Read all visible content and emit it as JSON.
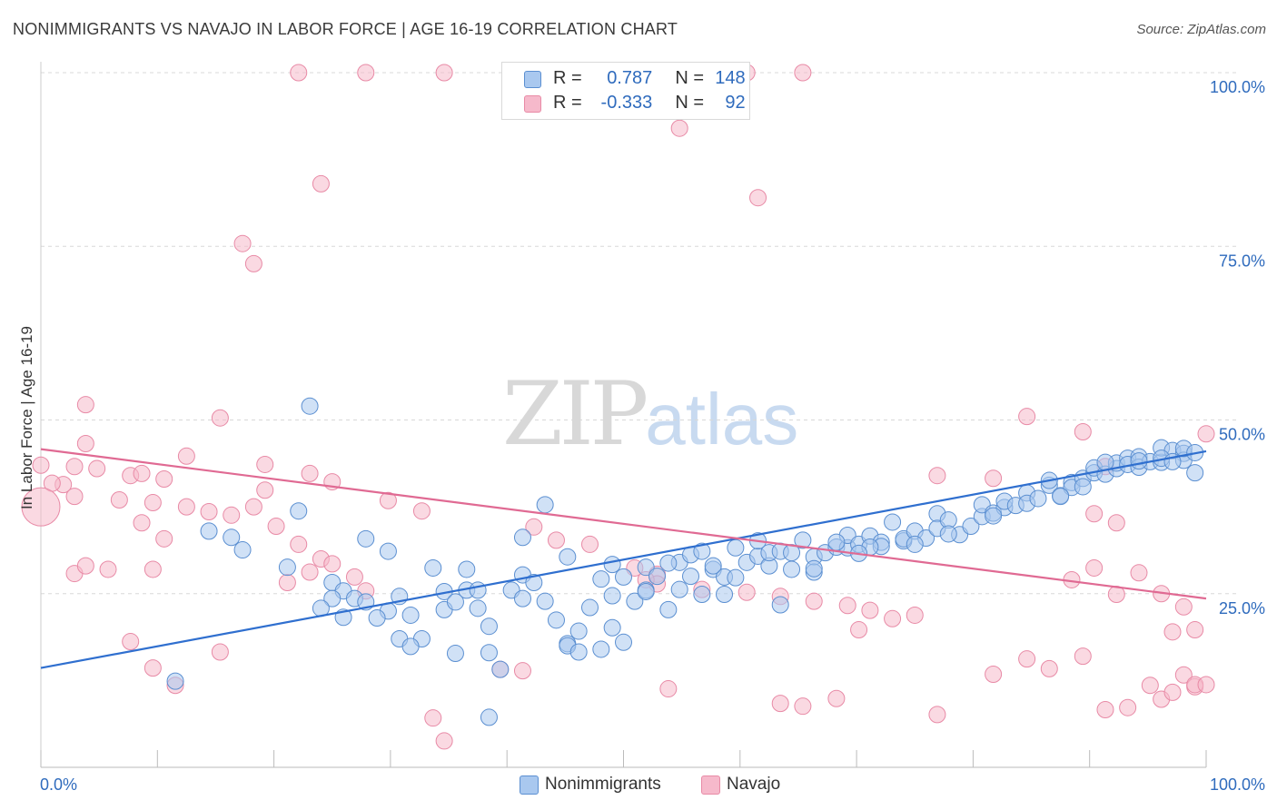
{
  "title": "NONIMMIGRANTS VS NAVAJO IN LABOR FORCE | AGE 16-19 CORRELATION CHART",
  "source": "Source: ZipAtlas.com",
  "watermark": {
    "zip": "ZIP",
    "atlas": "atlas"
  },
  "stats": {
    "row1": {
      "r_label": "R =",
      "r_value": "0.787",
      "n_label": "N =",
      "n_value": "148"
    },
    "row2": {
      "r_label": "R =",
      "r_value": "-0.333",
      "n_label": "N =",
      "n_value": "92"
    }
  },
  "legend": {
    "item1": "Nonimmigrants",
    "item2": "Navajo"
  },
  "colors": {
    "blue_fill": "#a9c8ef",
    "blue_stroke": "#5b8fd1",
    "blue_line": "#2f6fcf",
    "pink_fill": "#f6b9cb",
    "pink_stroke": "#e88aa6",
    "pink_line": "#e06a93",
    "axis_text": "#2f6bbd",
    "grid": "#d8d8d8"
  },
  "chart_data": {
    "type": "scatter",
    "title": "NONIMMIGRANTS VS NAVAJO IN LABOR FORCE | AGE 16-19 CORRELATION CHART",
    "xlabel": "",
    "ylabel": "In Labor Force | Age 16-19",
    "xlim": [
      0,
      100
    ],
    "ylim": [
      0,
      100
    ],
    "x_tick_labels": [
      "0.0%",
      "100.0%"
    ],
    "y_ticks": [
      25,
      50,
      75,
      100
    ],
    "y_tick_labels": [
      "25.0%",
      "50.0%",
      "75.0%",
      "100.0%"
    ],
    "grid": true,
    "legend_placement": "bottom-center",
    "series": [
      {
        "name": "Nonimmigrants",
        "r": 0.787,
        "n": 148,
        "trend": {
          "x": [
            0,
            100
          ],
          "y": [
            14.3,
            45.5
          ]
        },
        "points": [
          [
            24,
            52
          ],
          [
            23,
            36.9
          ],
          [
            18,
            31.3
          ],
          [
            22,
            28.8
          ],
          [
            26,
            26.6
          ],
          [
            27,
            25.4
          ],
          [
            28,
            24.3
          ],
          [
            26,
            24.3
          ],
          [
            25,
            22.9
          ],
          [
            27,
            21.6
          ],
          [
            29,
            32.9
          ],
          [
            31,
            31.1
          ],
          [
            29,
            23.8
          ],
          [
            31,
            22.5
          ],
          [
            32,
            18.5
          ],
          [
            34,
            18.5
          ],
          [
            33,
            21.9
          ],
          [
            36,
            22.7
          ],
          [
            37,
            16.4
          ],
          [
            36,
            25.3
          ],
          [
            37,
            23.8
          ],
          [
            38,
            28.5
          ],
          [
            38,
            25.5
          ],
          [
            39,
            22.9
          ],
          [
            40,
            20.3
          ],
          [
            41,
            14.1
          ],
          [
            42,
            25.5
          ],
          [
            43,
            27.7
          ],
          [
            43,
            24.3
          ],
          [
            44,
            26.6
          ],
          [
            45,
            23.9
          ],
          [
            46,
            21.2
          ],
          [
            47,
            17.8
          ],
          [
            48,
            19.6
          ],
          [
            49,
            23.0
          ],
          [
            50,
            27.1
          ],
          [
            51,
            29.2
          ],
          [
            51,
            24.7
          ],
          [
            52,
            27.4
          ],
          [
            53,
            23.9
          ],
          [
            54,
            28.8
          ],
          [
            54,
            25.5
          ],
          [
            55,
            27.5
          ],
          [
            56,
            22.7
          ],
          [
            57,
            29.5
          ],
          [
            58,
            27.5
          ],
          [
            58,
            30.6
          ],
          [
            59,
            31.1
          ],
          [
            60,
            28.5
          ],
          [
            61,
            27.4
          ],
          [
            62,
            31.6
          ],
          [
            63,
            29.5
          ],
          [
            64,
            30.4
          ],
          [
            65,
            29.0
          ],
          [
            65,
            30.9
          ],
          [
            66,
            31.1
          ],
          [
            67,
            30.9
          ],
          [
            67,
            28.5
          ],
          [
            68,
            32.7
          ],
          [
            69,
            30.3
          ],
          [
            70,
            30.9
          ],
          [
            71,
            31.7
          ],
          [
            72,
            31.6
          ],
          [
            72,
            33.4
          ],
          [
            73,
            32.1
          ],
          [
            74,
            33.3
          ],
          [
            75,
            32.4
          ],
          [
            75,
            31.8
          ],
          [
            76,
            35.3
          ],
          [
            77,
            32.6
          ],
          [
            77,
            32.9
          ],
          [
            78,
            34.0
          ],
          [
            79,
            33.0
          ],
          [
            80,
            36.5
          ],
          [
            80,
            34.4
          ],
          [
            81,
            35.6
          ],
          [
            82,
            33.5
          ],
          [
            83,
            34.7
          ],
          [
            84,
            36.1
          ],
          [
            84,
            37.8
          ],
          [
            85,
            36.6
          ],
          [
            86,
            37.4
          ],
          [
            86,
            38.3
          ],
          [
            87,
            37.7
          ],
          [
            88,
            39.5
          ],
          [
            88,
            38.0
          ],
          [
            89,
            38.7
          ],
          [
            90,
            40.6
          ],
          [
            90,
            41.3
          ],
          [
            91,
            39.1
          ],
          [
            92,
            41.0
          ],
          [
            92,
            40.3
          ],
          [
            93,
            41.6
          ],
          [
            94,
            42.4
          ],
          [
            94,
            43.1
          ],
          [
            95,
            42.2
          ],
          [
            96,
            43.0
          ],
          [
            96,
            43.8
          ],
          [
            97,
            44.5
          ],
          [
            97,
            43.6
          ],
          [
            98,
            44.7
          ],
          [
            98,
            43.2
          ],
          [
            99,
            44.0
          ],
          [
            100,
            43.9
          ],
          [
            100,
            46.0
          ],
          [
            101,
            45.6
          ],
          [
            102,
            45.2
          ],
          [
            102,
            44.2
          ],
          [
            102,
            45.9
          ],
          [
            103,
            45.3
          ],
          [
            103,
            42.4
          ],
          [
            60,
            29.0
          ],
          [
            69,
            28.1
          ],
          [
            61,
            24.9
          ],
          [
            78,
            32.1
          ],
          [
            74,
            31.7
          ],
          [
            56,
            29.4
          ],
          [
            64,
            32.6
          ],
          [
            52,
            18.0
          ],
          [
            47,
            30.3
          ],
          [
            45,
            37.8
          ],
          [
            43,
            33.1
          ],
          [
            39,
            25.5
          ],
          [
            35,
            28.7
          ],
          [
            32,
            24.6
          ],
          [
            30,
            21.5
          ],
          [
            33,
            17.4
          ],
          [
            40,
            16.5
          ],
          [
            47,
            17.5
          ],
          [
            48,
            16.6
          ],
          [
            50,
            17.0
          ],
          [
            51,
            20.1
          ],
          [
            54,
            25.3
          ],
          [
            57,
            25.6
          ],
          [
            59,
            24.9
          ],
          [
            62,
            27.3
          ],
          [
            66,
            23.4
          ],
          [
            69,
            28.6
          ],
          [
            71,
            32.4
          ],
          [
            73,
            30.8
          ],
          [
            81,
            33.6
          ],
          [
            85,
            36.2
          ],
          [
            91,
            39.0
          ],
          [
            93,
            40.4
          ],
          [
            95,
            43.9
          ],
          [
            98,
            44.1
          ],
          [
            100,
            44.5
          ],
          [
            101,
            44.0
          ],
          [
            40,
            7.2
          ],
          [
            12,
            12.4
          ],
          [
            17,
            33.1
          ],
          [
            15,
            34.0
          ]
        ]
      },
      {
        "name": "Navajo",
        "r": -0.333,
        "n": 92,
        "trend": {
          "x": [
            0,
            100
          ],
          "y": [
            45.8,
            24.3
          ]
        },
        "points": [
          [
            23,
            100
          ],
          [
            29,
            100
          ],
          [
            36,
            100
          ],
          [
            63,
            100
          ],
          [
            68,
            100
          ],
          [
            57,
            92
          ],
          [
            25,
            84
          ],
          [
            64,
            82
          ],
          [
            18,
            75.4
          ],
          [
            19,
            72.5
          ],
          [
            4,
            52.2
          ],
          [
            16,
            50.3
          ],
          [
            4,
            46.6
          ],
          [
            13,
            44.8
          ],
          [
            20,
            43.6
          ],
          [
            0,
            43.5
          ],
          [
            3,
            43.3
          ],
          [
            5,
            43.0
          ],
          [
            8,
            42.0
          ],
          [
            9,
            42.3
          ],
          [
            11,
            41.5
          ],
          [
            2,
            40.7
          ],
          [
            1,
            40.9
          ],
          [
            3,
            39.0
          ],
          [
            7,
            38.5
          ],
          [
            10,
            38.1
          ],
          [
            13,
            37.5
          ],
          [
            15,
            36.8
          ],
          [
            17,
            36.3
          ],
          [
            19,
            37.5
          ],
          [
            21,
            34.7
          ],
          [
            9,
            35.2
          ],
          [
            24,
            42.3
          ],
          [
            26,
            41.1
          ],
          [
            20,
            39.9
          ],
          [
            6,
            28.5
          ],
          [
            10,
            28.5
          ],
          [
            11,
            32.9
          ],
          [
            23,
            32.1
          ],
          [
            24,
            28.1
          ],
          [
            25,
            30.0
          ],
          [
            26,
            29.3
          ],
          [
            22,
            26.6
          ],
          [
            28,
            27.4
          ],
          [
            29,
            25.4
          ],
          [
            31,
            38.4
          ],
          [
            34,
            36.9
          ],
          [
            44,
            34.6
          ],
          [
            46,
            32.7
          ],
          [
            49,
            32.1
          ],
          [
            53,
            28.7
          ],
          [
            55,
            27.8
          ],
          [
            55,
            26.4
          ],
          [
            59,
            25.6
          ],
          [
            63,
            25.2
          ],
          [
            66,
            24.6
          ],
          [
            69,
            23.9
          ],
          [
            72,
            23.3
          ],
          [
            74,
            22.6
          ],
          [
            78,
            21.9
          ],
          [
            80,
            42.0
          ],
          [
            85,
            41.6
          ],
          [
            88,
            50.5
          ],
          [
            93,
            48.3
          ],
          [
            95,
            43.3
          ],
          [
            96,
            35.2
          ],
          [
            94,
            36.5
          ],
          [
            92,
            27.0
          ],
          [
            94,
            28.7
          ],
          [
            96,
            24.9
          ],
          [
            98,
            28.0
          ],
          [
            100,
            25.0
          ],
          [
            101,
            19.5
          ],
          [
            102,
            23.1
          ],
          [
            103,
            19.8
          ],
          [
            104,
            48.0
          ],
          [
            3,
            27.9
          ],
          [
            4,
            29.0
          ],
          [
            8,
            18.1
          ],
          [
            10,
            14.3
          ],
          [
            12,
            11.8
          ],
          [
            16,
            16.6
          ],
          [
            36,
            3.8
          ],
          [
            35,
            7.1
          ],
          [
            41,
            14.1
          ],
          [
            43,
            13.9
          ],
          [
            54,
            27.0
          ],
          [
            56,
            11.3
          ],
          [
            66,
            9.2
          ],
          [
            68,
            8.8
          ],
          [
            71,
            9.9
          ],
          [
            73,
            19.8
          ],
          [
            76,
            21.4
          ],
          [
            80,
            7.6
          ],
          [
            85,
            13.4
          ],
          [
            88,
            15.6
          ],
          [
            90,
            14.2
          ],
          [
            93,
            16.0
          ],
          [
            95,
            8.3
          ],
          [
            97,
            8.6
          ],
          [
            99,
            11.8
          ],
          [
            100,
            9.8
          ],
          [
            101,
            10.8
          ],
          [
            102,
            13.3
          ],
          [
            103,
            11.6
          ],
          [
            103,
            11.9
          ],
          [
            104,
            11.9
          ],
          [
            0,
            37.5
          ]
        ]
      }
    ]
  }
}
